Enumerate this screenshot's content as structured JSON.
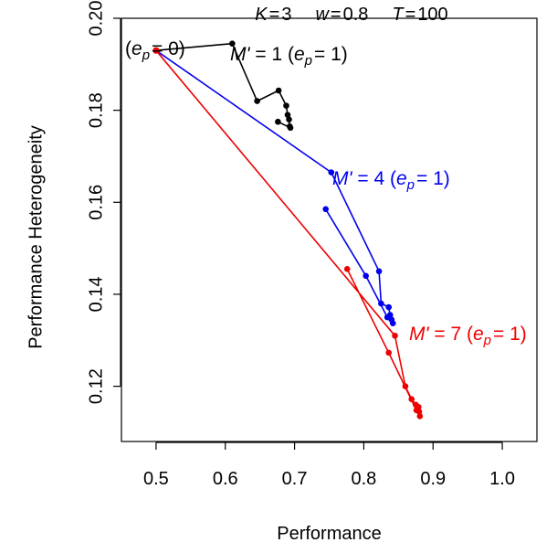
{
  "chart_data": {
    "type": "line",
    "title_parts": [
      {
        "var": "K",
        "op": "=",
        "val": "3"
      },
      {
        "var": "w",
        "op": "=",
        "val": "0.8"
      },
      {
        "var": "T",
        "op": "=",
        "val": "100"
      }
    ],
    "xlabel": "Performance",
    "ylabel": "Performance Heterogeneity",
    "xlim": [
      0.45,
      1.05
    ],
    "ylim": [
      0.108,
      0.2
    ],
    "x_ticks": [
      0.5,
      0.6,
      0.7,
      0.8,
      0.9,
      1.0
    ],
    "x_tick_labels": [
      "0.5",
      "0.6",
      "0.7",
      "0.8",
      "0.9",
      "1.0"
    ],
    "y_ticks": [
      0.12,
      0.14,
      0.16,
      0.18,
      0.2
    ],
    "y_tick_labels": [
      "0.12",
      "0.14",
      "0.16",
      "0.18",
      "0.20"
    ],
    "grid": false,
    "start_point": {
      "x": 0.5,
      "y": 0.193
    },
    "start_label": "(e_p = 0)",
    "series": [
      {
        "name": "M' = 1 (e_p = 1)",
        "color": "#000000",
        "points": [
          {
            "x": 0.61,
            "y": 0.1945
          },
          {
            "x": 0.646,
            "y": 0.182
          },
          {
            "x": 0.677,
            "y": 0.1843
          },
          {
            "x": 0.688,
            "y": 0.181
          },
          {
            "x": 0.69,
            "y": 0.179
          },
          {
            "x": 0.692,
            "y": 0.178
          },
          {
            "x": 0.693,
            "y": 0.1765
          },
          {
            "x": 0.694,
            "y": 0.1762
          },
          {
            "x": 0.676,
            "y": 0.1775
          }
        ]
      },
      {
        "name": "M' = 4 (e_p = 1)",
        "color": "#0000ee",
        "points": [
          {
            "x": 0.753,
            "y": 0.1665
          },
          {
            "x": 0.822,
            "y": 0.145
          },
          {
            "x": 0.825,
            "y": 0.138
          },
          {
            "x": 0.836,
            "y": 0.1372
          },
          {
            "x": 0.838,
            "y": 0.1355
          },
          {
            "x": 0.84,
            "y": 0.1345
          },
          {
            "x": 0.842,
            "y": 0.1337
          },
          {
            "x": 0.834,
            "y": 0.135
          },
          {
            "x": 0.803,
            "y": 0.144
          },
          {
            "x": 0.745,
            "y": 0.1585
          }
        ]
      },
      {
        "name": "M' = 7 (e_p = 1)",
        "color": "#ee0000",
        "points": [
          {
            "x": 0.845,
            "y": 0.131
          },
          {
            "x": 0.86,
            "y": 0.12
          },
          {
            "x": 0.869,
            "y": 0.1172
          },
          {
            "x": 0.875,
            "y": 0.116
          },
          {
            "x": 0.879,
            "y": 0.1155
          },
          {
            "x": 0.88,
            "y": 0.1145
          },
          {
            "x": 0.881,
            "y": 0.1135
          },
          {
            "x": 0.876,
            "y": 0.1148
          },
          {
            "x": 0.836,
            "y": 0.1273
          },
          {
            "x": 0.776,
            "y": 0.1455
          }
        ]
      }
    ]
  },
  "annotations": [
    {
      "series": 0,
      "label": "M' = 1 (e_p = 1)",
      "prime": "M'",
      "eq": "= 1 (",
      "e": "e",
      "sub": "p",
      "eq2": "= 1)"
    },
    {
      "series": 1,
      "label": "M' = 4 (e_p = 1)",
      "prime": "M'",
      "eq": "= 4 (",
      "e": "e",
      "sub": "p",
      "eq2": "= 1)"
    },
    {
      "series": 2,
      "label": "M' = 7 (e_p = 1)",
      "prime": "M'",
      "eq": "= 7 (",
      "e": "e",
      "sub": "p",
      "eq2": "= 1)"
    }
  ],
  "start_annotation": {
    "open": "(",
    "e": "e",
    "sub": "p",
    "eq": "= 0)"
  }
}
